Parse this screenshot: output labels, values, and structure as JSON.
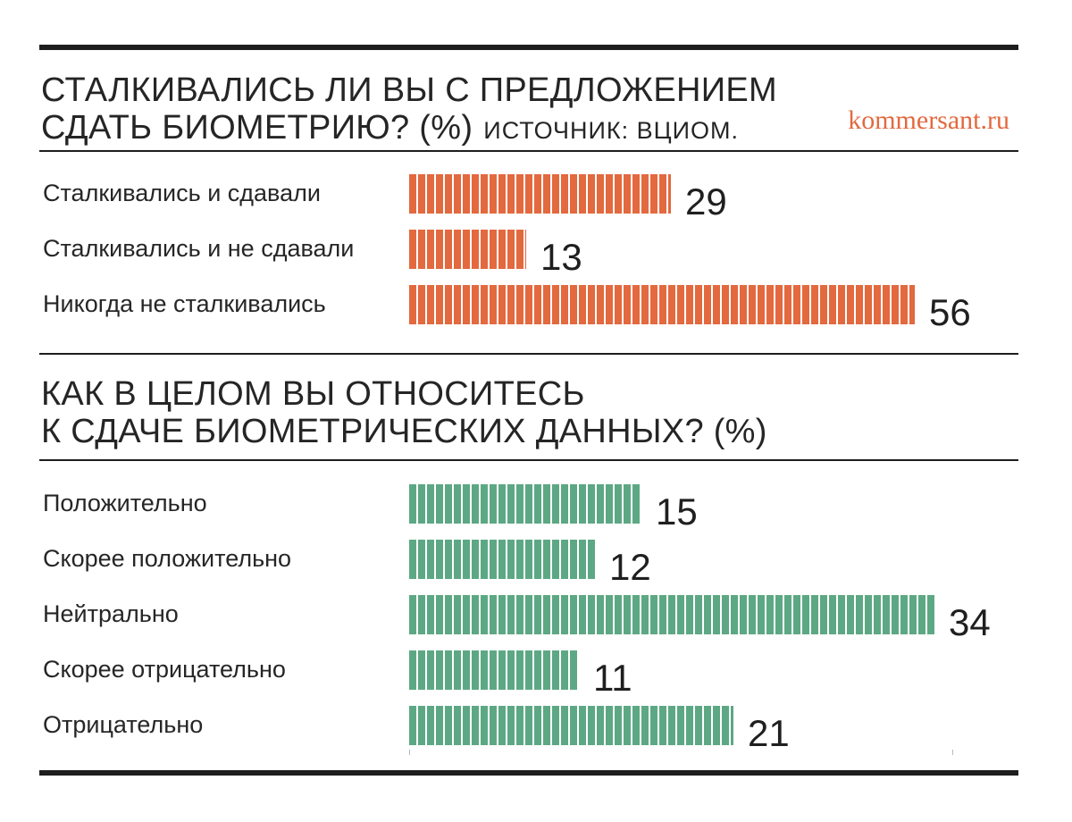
{
  "brand": "kommersant.ru",
  "colors": {
    "survey_bars": "#e3693f",
    "attitude_bars": "#5da884",
    "text": "#222222",
    "rules": "#1e1e1e"
  },
  "chart_data": [
    {
      "type": "bar",
      "orientation": "horizontal",
      "title_line1": "СТАЛКИВАЛИСЬ ЛИ ВЫ С ПРЕДЛОЖЕНИЕМ",
      "title_line2": "СДАТЬ БИОМЕТРИЮ? (%)",
      "source": "ИСТОЧНИК: ВЦИОМ.",
      "categories": [
        "Сталкивались и сдавали",
        "Сталкивались и не сдавали",
        "Никогда не сталкивались"
      ],
      "values": [
        29,
        13,
        56
      ],
      "value_labels": [
        "29",
        "13",
        "56"
      ],
      "color": "#e3693f"
    },
    {
      "type": "bar",
      "orientation": "horizontal",
      "title_line1": "КАК В ЦЕЛОМ ВЫ ОТНОСИТЕСЬ",
      "title_line2": "К СДАЧЕ БИОМЕТРИЧЕСКИХ ДАННЫХ? (%)",
      "categories": [
        "Положительно",
        "Скорее положительно",
        "Нейтрально",
        "Скорее отрицательно",
        "Отрицательно"
      ],
      "values": [
        15,
        12,
        34,
        11,
        21
      ],
      "value_labels": [
        "15",
        "12",
        "34",
        "11",
        "21"
      ],
      "color": "#5da884"
    }
  ]
}
